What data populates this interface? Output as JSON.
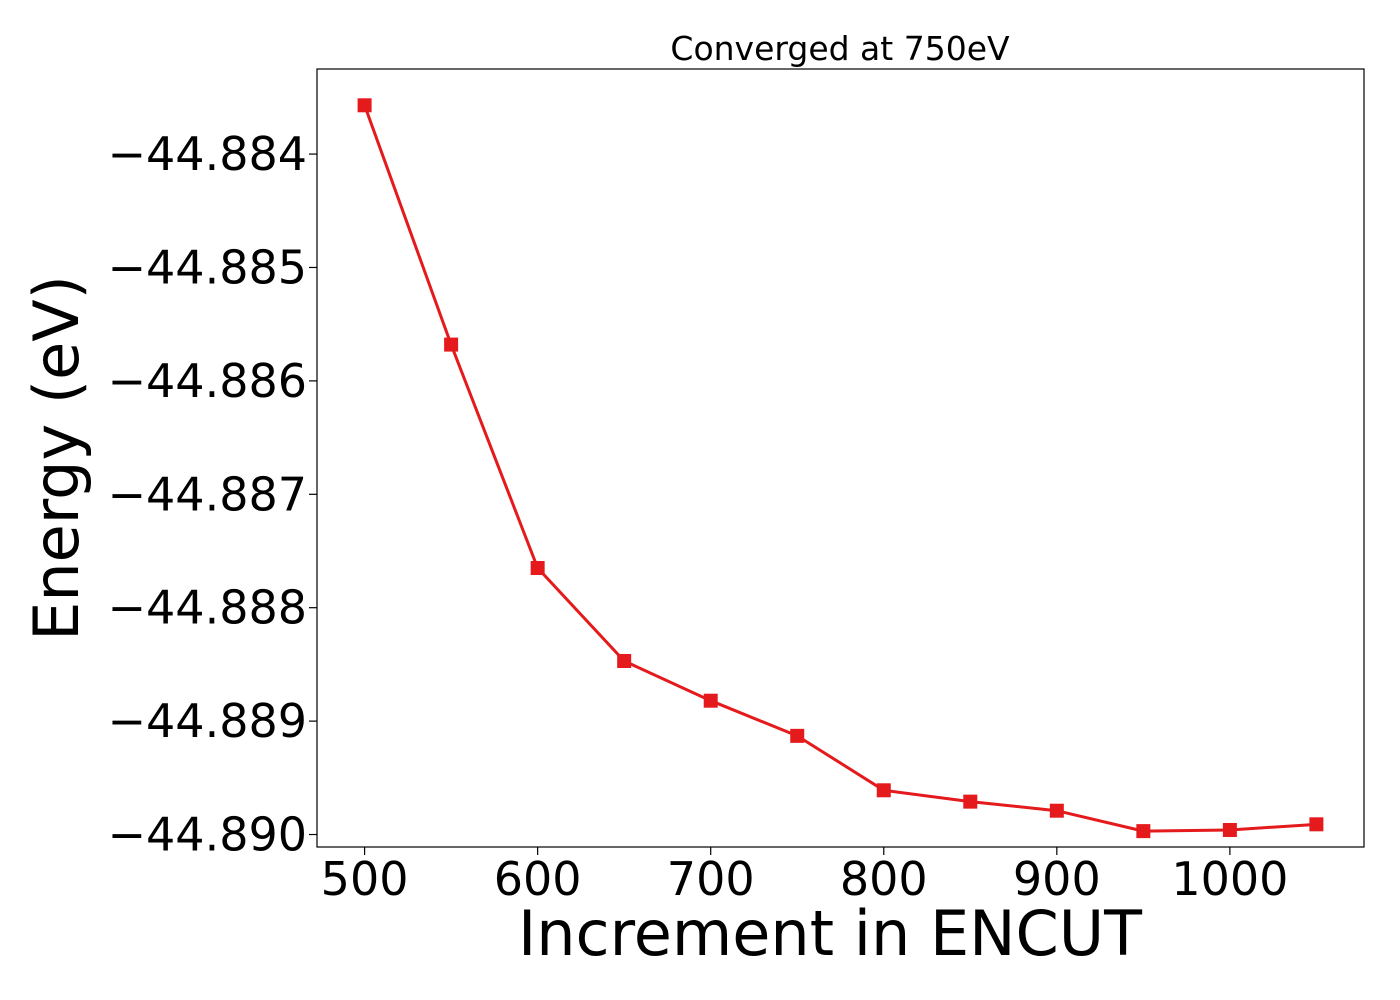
{
  "chart_data": {
    "type": "line",
    "title": "Converged at 750eV",
    "xlabel": "Increment in ENCUT",
    "ylabel": "Energy (eV)",
    "x": [
      500,
      550,
      600,
      650,
      700,
      750,
      800,
      850,
      900,
      950,
      1000,
      1050
    ],
    "series": [
      {
        "values": [
          -44.88357,
          -44.88568,
          -44.88765,
          -44.88847,
          -44.88882,
          -44.88913,
          -44.88961,
          -44.88971,
          -44.88979,
          -44.88997,
          -44.88996,
          -44.88991
        ],
        "color": "#e41a1c",
        "marker": "square"
      }
    ],
    "xticks": [
      500,
      600,
      700,
      800,
      900,
      1000
    ],
    "xtick_labels": [
      "500",
      "600",
      "700",
      "800",
      "900",
      "1000"
    ],
    "yticks": [
      -44.884,
      -44.885,
      -44.886,
      -44.887,
      -44.888,
      -44.889,
      -44.89
    ],
    "ytick_labels": [
      "−44.884",
      "−44.885",
      "−44.886",
      "−44.887",
      "−44.888",
      "−44.889",
      "−44.890"
    ],
    "xlim": [
      472.5,
      1077.5
    ],
    "ylim": [
      -44.89011,
      -44.88325
    ],
    "grid": false,
    "legend": false
  }
}
